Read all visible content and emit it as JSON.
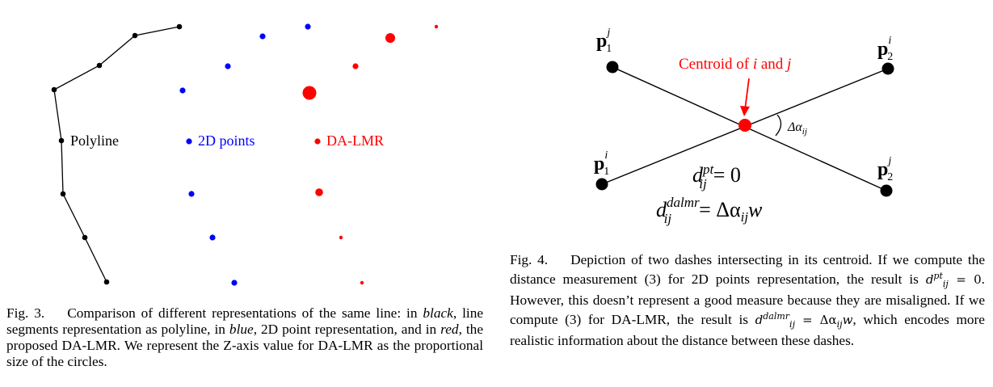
{
  "figure3": {
    "legend": {
      "polyline": "Polyline",
      "points2d": "2D points",
      "dalmr": "DA-LMR"
    },
    "colors": {
      "polyline": "#000000",
      "points2d": "#0000ff",
      "dalmr": "#ff0000"
    },
    "caption": {
      "label": "Fig. 3.",
      "part1": "Comparison of different representations of the same line: in ",
      "black": "black",
      "part2": ", line segments representation as polyline, in ",
      "blue": "blue",
      "part3": ", 2D point representation, and in ",
      "red": "red",
      "part4": ", the proposed DA-LMR. We represent the Z-axis value for DA-LMR as the proportional size of the circles."
    }
  },
  "figure4": {
    "annotation": "Centroid of i and j",
    "annotation_prefix": "Centroid of ",
    "annotation_i": "i",
    "annotation_and": " and ",
    "annotation_j": "j",
    "angle_label": "Δα",
    "angle_sub": "ij",
    "points": {
      "top_left": {
        "base": "p",
        "sub": "1",
        "sup": "j"
      },
      "top_right": {
        "base": "p",
        "sub": "2",
        "sup": "i"
      },
      "bottom_left": {
        "base": "p",
        "sub": "1",
        "sup": "i"
      },
      "bottom_right": {
        "base": "p",
        "sub": "2",
        "sup": "j"
      }
    },
    "eq1": {
      "lhs": "d",
      "sup": "pt",
      "sub": "ij",
      "rhs": "= 0"
    },
    "eq2": {
      "lhs": "d",
      "sup": "dalmr",
      "sub": "ij",
      "rhs": "= Δα",
      "rhs_sub": "ij",
      "rhs_tail": "w"
    },
    "colors": {
      "lines": "#000000",
      "centroid": "#ff0000"
    },
    "caption": {
      "label": "Fig. 4.",
      "part1": "Depiction of two dashes intersecting in its centroid. If we compute the distance measurement (3) for 2D points representation, the result is ",
      "m1_base": "d",
      "m1_sup": "pt",
      "m1_sub": "ij",
      "m1_rhs": " = 0",
      "part2": ". However, this doesn’t represent a good measure because they are misaligned. If we compute (3) for DA-LMR, the result is ",
      "m2_base": "d",
      "m2_sup": "dalmr",
      "m2_sub": "ij",
      "m2_rhs": " = Δα",
      "m2_rsub": "ij",
      "m2_tail": "w",
      "part3": ", which encodes more realistic information about the distance between these dashes."
    }
  }
}
